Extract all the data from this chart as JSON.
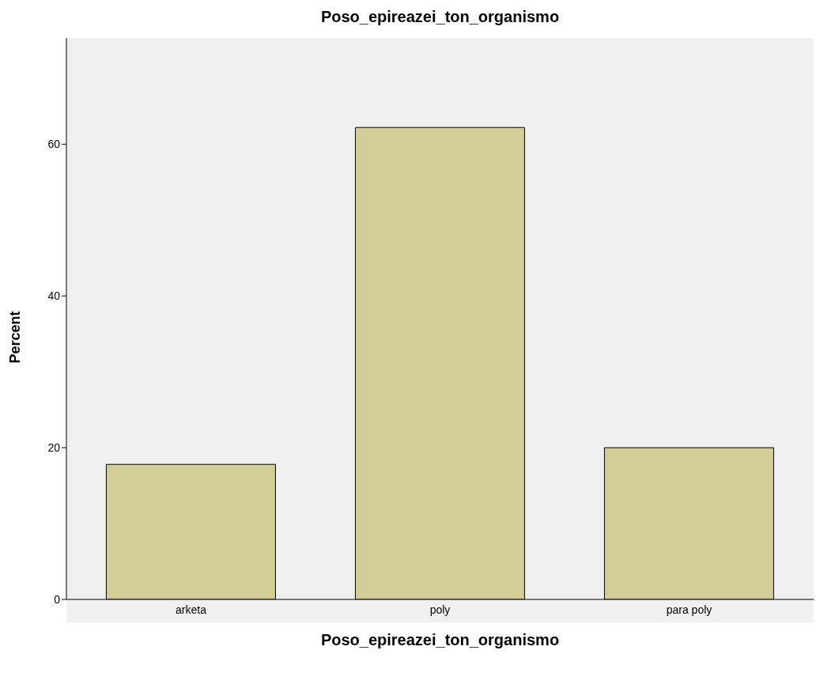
{
  "chart_data": {
    "type": "bar",
    "title": "Poso_epireazei_ton_organismo",
    "xlabel": "Poso_epireazei_ton_organismo",
    "ylabel": "Percent",
    "categories": [
      "arketa",
      "poly",
      "para poly"
    ],
    "values": [
      17.8,
      62.2,
      20.0
    ],
    "color": "#d3ce97",
    "ylim": [
      0,
      74
    ],
    "yticks": [
      0,
      20,
      40,
      60
    ],
    "grid": false,
    "legend": false
  }
}
